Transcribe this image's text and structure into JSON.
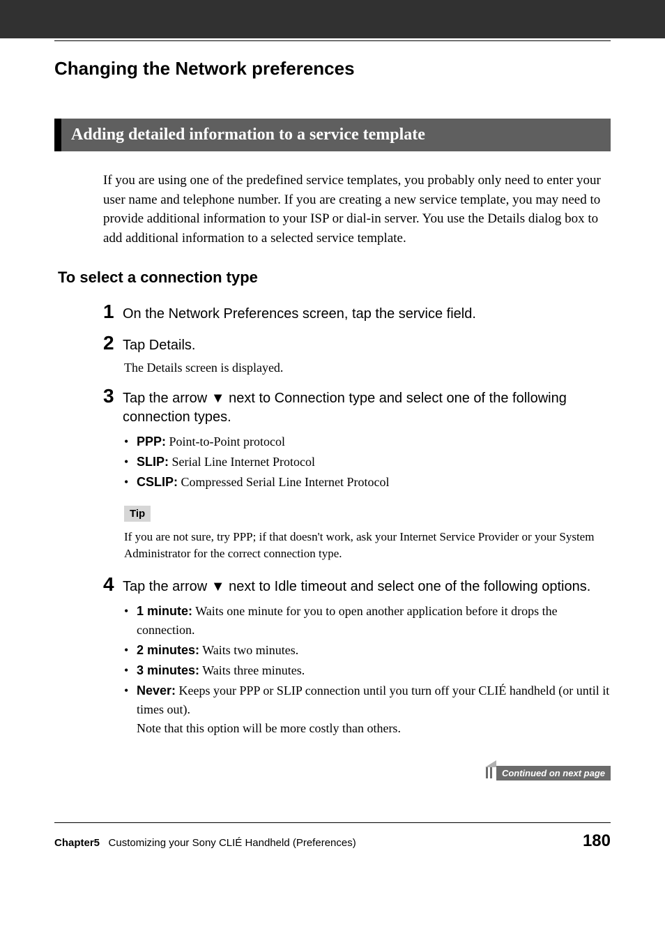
{
  "header": {
    "main_heading": "Changing the Network preferences",
    "subsection": "Adding detailed information to a service template"
  },
  "intro": "If you are using one of the predefined service templates, you probably only need to enter your user name and telephone number. If you are creating a new service template, you may need to provide additional information to your ISP or dial-in server. You use the Details dialog box to add additional information to a selected service template.",
  "subheading": "To select a connection type",
  "steps": [
    {
      "num": "1",
      "text": "On the Network Preferences screen, tap the service field."
    },
    {
      "num": "2",
      "text": "Tap Details.",
      "sub": "The Details screen is displayed."
    },
    {
      "num": "3",
      "text_pre": "Tap the arrow ",
      "text_post": " next to Connection type and select one of the following connection types.",
      "bullets": [
        {
          "bold": "PPP:",
          "rest": " Point-to-Point protocol"
        },
        {
          "bold": "SLIP:",
          "rest": " Serial Line Internet Protocol"
        },
        {
          "bold": "CSLIP:",
          "rest": " Compressed Serial Line Internet Protocol"
        }
      ]
    },
    {
      "num": "4",
      "text_pre": "Tap the arrow ",
      "text_post": " next to Idle timeout and select one of the following options.",
      "bullets": [
        {
          "bold": "1 minute:",
          "rest": " Waits one minute for you to open another application before it drops the connection."
        },
        {
          "bold": "2 minutes:",
          "rest": " Waits two minutes."
        },
        {
          "bold": "3 minutes:",
          "rest": " Waits three minutes."
        },
        {
          "bold": "Never:",
          "rest": " Keeps your PPP or SLIP connection until you turn off your CLIÉ handheld (or until it times out).",
          "note": "Note that this option will be more costly than others."
        }
      ]
    }
  ],
  "tip": {
    "label": "Tip",
    "text": "If you are not sure, try PPP; if that doesn't work, ask your Internet Service Provider or your System Administrator for the correct connection type."
  },
  "arrow_glyph": "▼",
  "continued": "Continued on next page",
  "footer": {
    "chapter": "Chapter5",
    "title": "Customizing your Sony CLIÉ Handheld (Preferences)",
    "page": "180"
  }
}
